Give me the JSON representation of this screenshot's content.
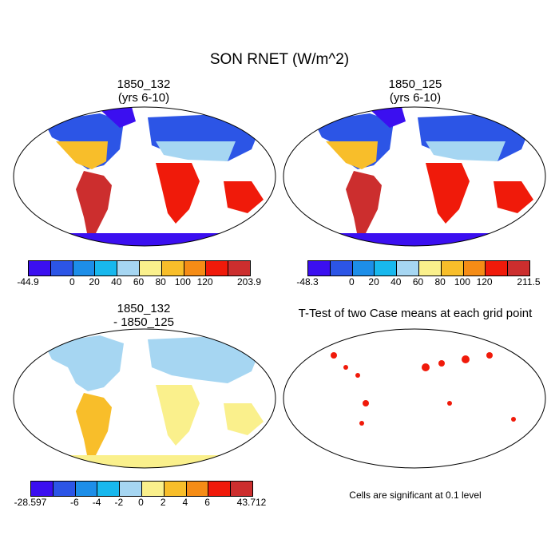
{
  "title": "SON RNET (W/m^2)",
  "panels": {
    "p1": {
      "title_line1": "1850_132",
      "title_line2": "(yrs 6-10)"
    },
    "p2": {
      "title_line1": "1850_125",
      "title_line2": "(yrs 6-10)"
    },
    "p3": {
      "title_line1": "1850_132",
      "title_line2": "- 1850_125"
    },
    "p4": {
      "title_line1": "T-Test of two Case means at each grid point",
      "footnote": "Cells are significant at 0.1 level"
    }
  },
  "colorbars": {
    "abs_colors": [
      "#3b0ff0",
      "#2c55e6",
      "#1d8ee8",
      "#18b8ee",
      "#a6d6f2",
      "#faf08c",
      "#f8be2a",
      "#f58c16",
      "#f01a0a",
      "#cc2e2e"
    ],
    "diff_colors": [
      "#3b0ff0",
      "#2c55e6",
      "#1d8ee8",
      "#18b8ee",
      "#a6d6f2",
      "#faf08c",
      "#f8be2a",
      "#f58c16",
      "#f01a0a",
      "#cc2e2e"
    ],
    "cb1": {
      "min": "-44.9",
      "max": "203.9",
      "ticks": [
        "0",
        "20",
        "40",
        "60",
        "80",
        "100",
        "120"
      ]
    },
    "cb2": {
      "min": "-48.3",
      "max": "211.5",
      "ticks": [
        "0",
        "20",
        "40",
        "60",
        "80",
        "100",
        "120"
      ]
    },
    "cb3": {
      "min": "-28.597",
      "max": "43.712",
      "ticks": [
        "-6",
        "-4",
        "-2",
        "0",
        "2",
        "4",
        "6"
      ]
    }
  }
}
